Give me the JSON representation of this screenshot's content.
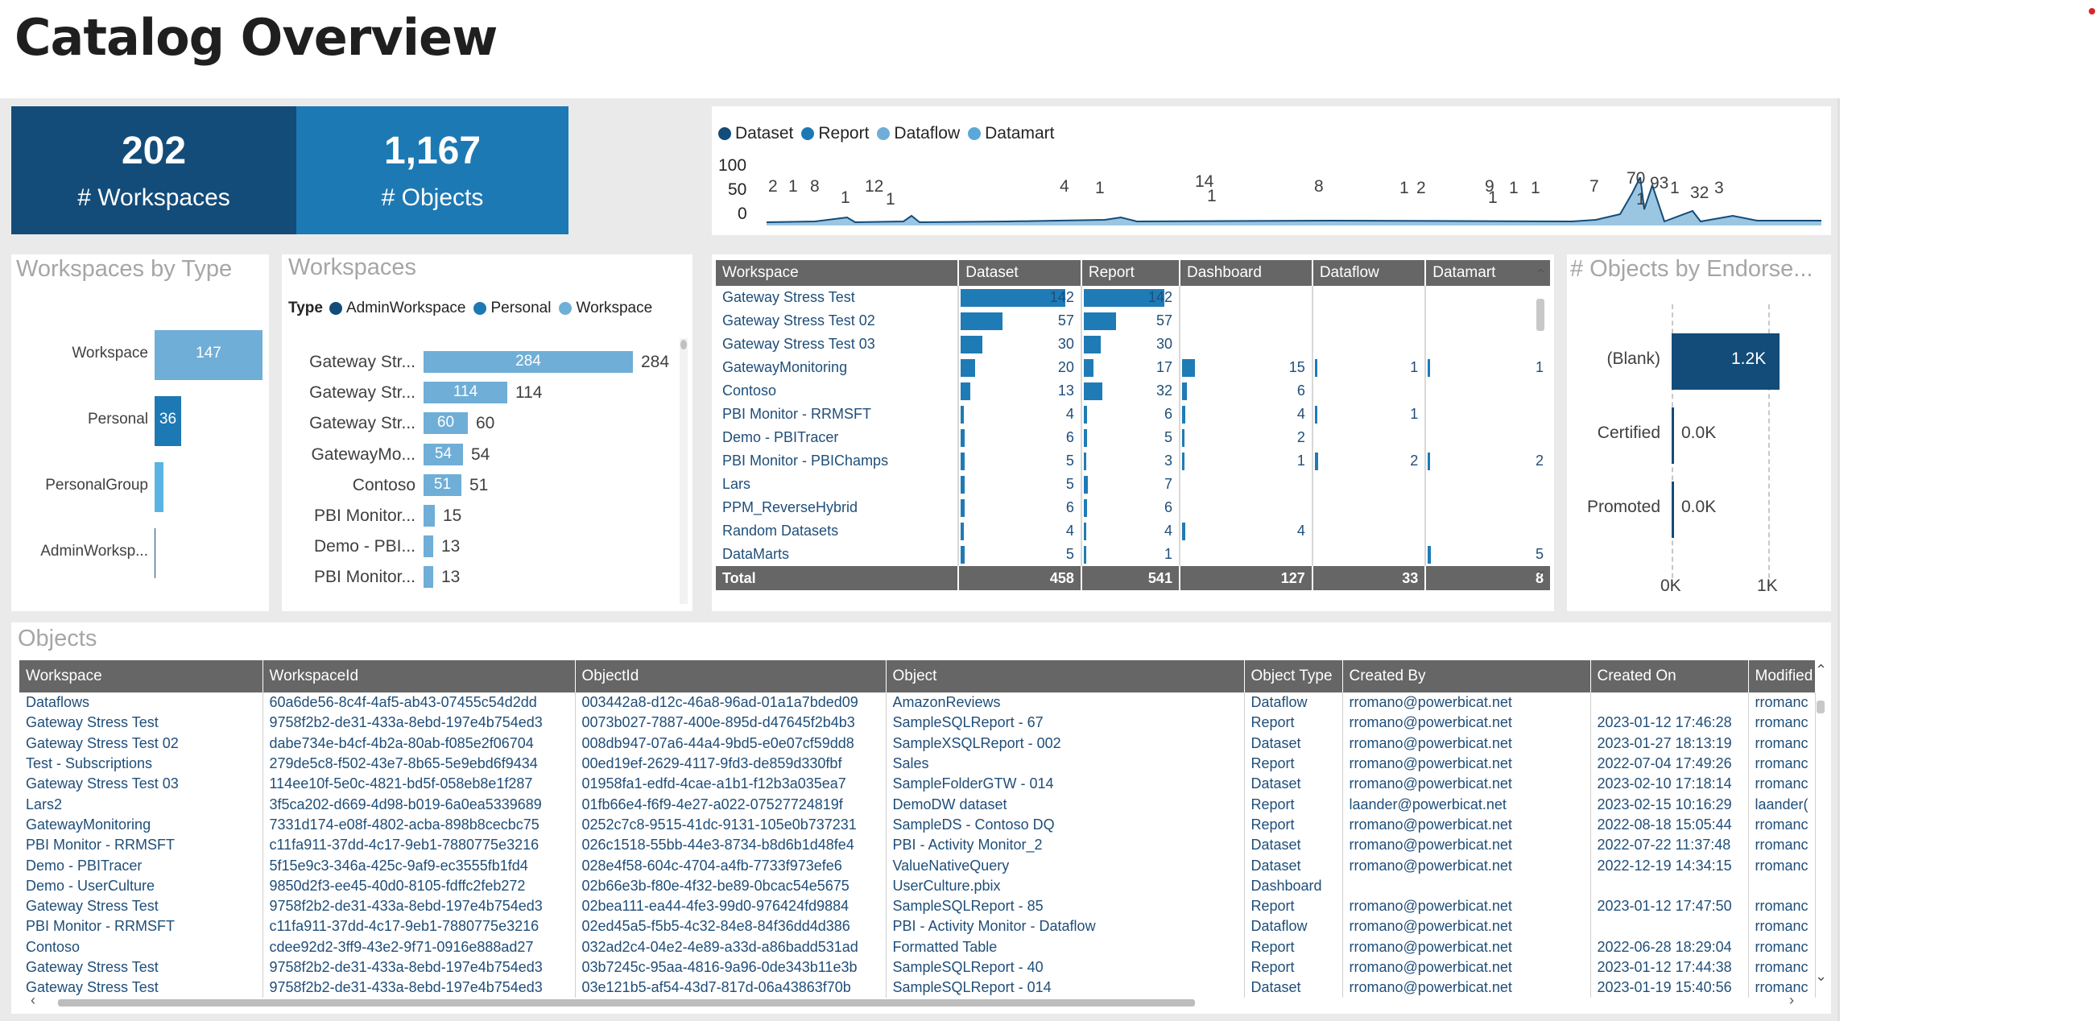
{
  "page": {
    "title": "Catalog Overview"
  },
  "cards": [
    {
      "value": "202",
      "label": "# Workspaces",
      "color": "#134c79"
    },
    {
      "value": "1,167",
      "label": "# Objects",
      "color": "#1d79b3"
    }
  ],
  "timeline": {
    "legend": [
      {
        "name": "Dataset",
        "color": "#134c79"
      },
      {
        "name": "Report",
        "color": "#1d79b3"
      },
      {
        "name": "Dataflow",
        "color": "#6faed6"
      },
      {
        "name": "Datamart",
        "color": "#5aa8da"
      }
    ],
    "y_ticks": [
      "100",
      "50",
      "0"
    ],
    "peak_labels": [
      "2",
      "1",
      "8",
      "1",
      "12",
      "1",
      "4",
      "1",
      "14",
      "1",
      "8",
      "1",
      "2",
      "9",
      "1",
      "1",
      "1",
      "7",
      "70",
      "1",
      "93",
      "1",
      "32",
      "3"
    ]
  },
  "ws_by_type": {
    "title": "Workspaces by Type",
    "chart_data": {
      "type": "bar",
      "orientation": "horizontal",
      "categories": [
        "Workspace",
        "Personal",
        "PersonalGroup",
        "AdminWorksp..."
      ],
      "values": [
        147,
        36,
        12,
        1
      ],
      "value_labels": [
        "147",
        "36",
        "",
        ""
      ],
      "colors": [
        "#6faed6",
        "#1d79b3",
        "#5ab4e3",
        "#134c79"
      ]
    }
  },
  "workspaces": {
    "title": "Workspaces",
    "legend_title": "Type",
    "legend": [
      {
        "name": "AdminWorkspace",
        "color": "#134c79"
      },
      {
        "name": "Personal",
        "color": "#1d79b3"
      },
      {
        "name": "Workspace",
        "color": "#6faed6"
      }
    ],
    "chart_data": {
      "type": "bar",
      "orientation": "horizontal",
      "categories": [
        "Gateway Str...",
        "Gateway Str...",
        "Gateway Str...",
        "GatewayMo...",
        "Contoso",
        "PBI Monitor...",
        "Demo - PBI...",
        "PBI Monitor..."
      ],
      "values": [
        284,
        114,
        60,
        54,
        51,
        15,
        13,
        13
      ],
      "inner_labels": [
        "284",
        "114",
        "60",
        "54",
        "51",
        "",
        "",
        ""
      ],
      "outer_labels": [
        "284",
        "114",
        "60",
        "54",
        "51",
        "15",
        "13",
        "13"
      ]
    }
  },
  "matrix": {
    "headers": [
      "Workspace",
      "Dataset",
      "Report",
      "Dashboard",
      "Dataflow",
      "Datamart"
    ],
    "rows": [
      [
        "Gateway Stress Test",
        "142",
        "142",
        "",
        "",
        ""
      ],
      [
        "Gateway Stress Test 02",
        "57",
        "57",
        "",
        "",
        ""
      ],
      [
        "Gateway Stress Test 03",
        "30",
        "30",
        "",
        "",
        ""
      ],
      [
        "GatewayMonitoring",
        "20",
        "17",
        "15",
        "1",
        "1"
      ],
      [
        "Contoso",
        "13",
        "32",
        "6",
        "",
        ""
      ],
      [
        "PBI Monitor - RRMSFT",
        "4",
        "6",
        "4",
        "1",
        ""
      ],
      [
        "Demo - PBITracer",
        "6",
        "5",
        "2",
        "",
        ""
      ],
      [
        "PBI Monitor - PBIChamps",
        "5",
        "3",
        "1",
        "2",
        "2"
      ],
      [
        "Lars",
        "5",
        "7",
        "",
        "",
        ""
      ],
      [
        "PPM_ReverseHybrid",
        "6",
        "6",
        "",
        "",
        ""
      ],
      [
        "Random Datasets",
        "4",
        "4",
        "4",
        "",
        ""
      ],
      [
        "DataMarts",
        "5",
        "1",
        "",
        "",
        "5"
      ]
    ],
    "total": [
      "Total",
      "458",
      "541",
      "127",
      "33",
      "8"
    ]
  },
  "endorse": {
    "title": "# Objects by Endorse...",
    "chart_data": {
      "type": "bar",
      "orientation": "horizontal",
      "categories": [
        "(Blank)",
        "Certified",
        "Promoted"
      ],
      "values": [
        1167,
        0,
        0
      ],
      "value_labels": [
        "1.2K",
        "0.0K",
        "0.0K"
      ],
      "x_ticks": [
        "0K",
        "1K"
      ],
      "xlim": [
        0,
        1200
      ]
    }
  },
  "objects": {
    "title": "Objects",
    "headers": [
      "Workspace",
      "WorkspaceId",
      "ObjectId",
      "Object",
      "Object Type",
      "Created By",
      "Created On",
      "Modified"
    ],
    "rows": [
      [
        "Dataflows",
        "60a6de56-8c4f-4af5-ab43-07455c54d2dd",
        "003442a8-d12c-46a8-96ad-01a1a7bded09",
        "AmazonReviews",
        "Dataflow",
        "rromano@powerbicat.net",
        "",
        "rromanc"
      ],
      [
        "Gateway Stress Test",
        "9758f2b2-de31-433a-8ebd-197e4b754ed3",
        "0073b027-7887-400e-895d-d47645f2b4b3",
        "SampleSQLReport - 67",
        "Report",
        "rromano@powerbicat.net",
        "2023-01-12 17:46:28",
        "rromanc"
      ],
      [
        "Gateway Stress Test 02",
        "dabe734e-b4cf-4b2a-80ab-f085e2f06704",
        "008db947-07a6-44a4-9bd5-e0e07cf59dd8",
        "SampleXSQLReport - 002",
        "Dataset",
        "rromano@powerbicat.net",
        "2023-01-27 18:13:19",
        "rromanc"
      ],
      [
        "Test - Subscriptions",
        "279de5c8-f502-43e7-8b65-5e9ebd6f9434",
        "00ed19ef-2629-4117-9fd3-de859d330fbf",
        "Sales",
        "Report",
        "rromano@powerbicat.net",
        "2022-07-04 17:49:26",
        "rromanc"
      ],
      [
        "Gateway Stress Test 03",
        "114ee10f-5e0c-4821-bd5f-058eb8e1f287",
        "01958fa1-edfd-4cae-a1b1-f12b3a035ea7",
        "SampleFolderGTW - 014",
        "Dataset",
        "rromano@powerbicat.net",
        "2023-02-10 17:18:14",
        "rromanc"
      ],
      [
        "Lars2",
        "3f5ca202-d669-4d98-b019-6a0ea5339689",
        "01fb66e4-f6f9-4e27-a022-07527724819f",
        "DemoDW dataset",
        "Report",
        "laander@powerbicat.net",
        "2023-02-15 10:16:29",
        "laander("
      ],
      [
        "GatewayMonitoring",
        "7331d174-e08f-4802-acba-898b8cecbc75",
        "0252c7c8-9515-41dc-9131-105e0b737231",
        "SampleDS - Contoso DQ",
        "Report",
        "rromano@powerbicat.net",
        "2022-08-18 15:05:44",
        "rromanc"
      ],
      [
        "PBI Monitor - RRMSFT",
        "c11fa911-37dd-4c17-9eb1-7880775e3216",
        "026c1518-55bb-44e3-8734-b8d6b1d48fe4",
        "PBI - Activity Monitor_2",
        "Dataset",
        "rromano@powerbicat.net",
        "2022-07-22 11:37:48",
        "rromanc"
      ],
      [
        "Demo - PBITracer",
        "5f15e9c3-346a-425c-9af9-ec3555fb1fd4",
        "028e4f58-604c-4704-a4fb-7733f973efe6",
        "ValueNativeQuery",
        "Dataset",
        "rromano@powerbicat.net",
        "2022-12-19 14:34:15",
        "rromanc"
      ],
      [
        "Demo - UserCulture",
        "9850d2f3-ee45-40d0-8105-fdffc2feb272",
        "02b66e3b-f80e-4f32-be89-0bcac54e5675",
        "UserCulture.pbix",
        "Dashboard",
        "",
        "",
        ""
      ],
      [
        "Gateway Stress Test",
        "9758f2b2-de31-433a-8ebd-197e4b754ed3",
        "02bea111-ea44-4fe3-99d0-976424fd9884",
        "SampleSQLReport - 85",
        "Report",
        "rromano@powerbicat.net",
        "2023-01-12 17:47:50",
        "rromanc"
      ],
      [
        "PBI Monitor - RRMSFT",
        "c11fa911-37dd-4c17-9eb1-7880775e3216",
        "02ed45a5-f5b5-4c32-84e8-84f36dd4d386",
        "PBI - Activity Monitor - Dataflow",
        "Dataflow",
        "rromano@powerbicat.net",
        "",
        "rromanc"
      ],
      [
        "Contoso",
        "cdee92d2-3ff9-43e2-9f71-0916e888ad27",
        "032ad2c4-04e2-4e89-a33d-a86badd531ad",
        "Formatted Table",
        "Report",
        "rromano@powerbicat.net",
        "2022-06-28 18:29:04",
        "rromanc"
      ],
      [
        "Gateway Stress Test",
        "9758f2b2-de31-433a-8ebd-197e4b754ed3",
        "03b7245c-95aa-4816-9a96-0de343b11e3b",
        "SampleSQLReport - 40",
        "Report",
        "rromano@powerbicat.net",
        "2023-01-12 17:44:38",
        "rromanc"
      ],
      [
        "Gateway Stress Test",
        "9758f2b2-de31-433a-8ebd-197e4b754ed3",
        "03e121b5-af54-43d7-817d-06a43863f70b",
        "SampleSQLReport - 014",
        "Dataset",
        "rromano@powerbicat.net",
        "2023-01-19 15:40:56",
        "rromanc"
      ]
    ]
  }
}
